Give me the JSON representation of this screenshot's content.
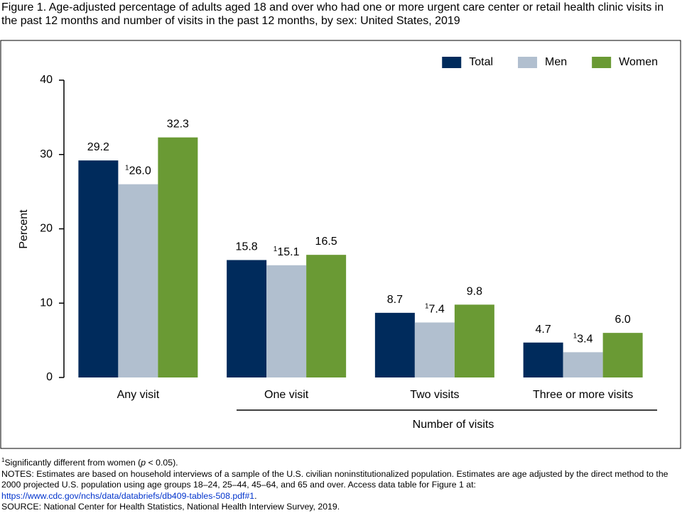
{
  "chart_data": {
    "type": "bar",
    "title": "Figure 1. Age-adjusted percentage of adults aged 18 and over who had one or more urgent care center or retail health clinic visits in the past 12 months and number of visits in the past 12 months, by sex: United States, 2019",
    "ylabel": "Percent",
    "xlabel": "Number of visits",
    "categories": [
      "Any visit",
      "One visit",
      "Two visits",
      "Three or more visits"
    ],
    "series": [
      {
        "name": "Total",
        "color": "#002b5c",
        "values": [
          29.2,
          15.8,
          8.7,
          4.7
        ]
      },
      {
        "name": "Men",
        "color": "#b1bfcf",
        "values": [
          26.0,
          15.1,
          7.4,
          3.4
        ],
        "value_labels": [
          "26.0",
          "15.1",
          "7.4",
          "3.4"
        ],
        "footnote_marker": "1"
      },
      {
        "name": "Women",
        "color": "#6a9a34",
        "values": [
          32.3,
          16.5,
          9.8,
          6.0
        ],
        "value_labels": [
          "32.3",
          "16.5",
          "9.8",
          "6.0"
        ]
      }
    ],
    "ylim": [
      0,
      40
    ],
    "yticks": [
      0,
      10,
      20,
      30,
      40
    ],
    "grid": false,
    "legend": "top-right"
  },
  "footnote": {
    "marker": "1",
    "text": [
      "Significantly different from women (",
      "p",
      " < 0.05)."
    ]
  },
  "notes": "NOTES: Estimates are based on household interviews of a sample of the U.S. civilian noninstitutionalized population. Estimates are age adjusted by the direct method to the 2000 projected U.S. population using age groups 18–24, 25–44, 45–64, and 65 and over. Access data table for Figure 1 at:",
  "link": "https://www.cdc.gov/nchs/data/databriefs/db409-tables-508.pdf#1",
  "link_after": ".",
  "source": "SOURCE: National Center for Health Statistics, National Health Interview Survey, 2019."
}
